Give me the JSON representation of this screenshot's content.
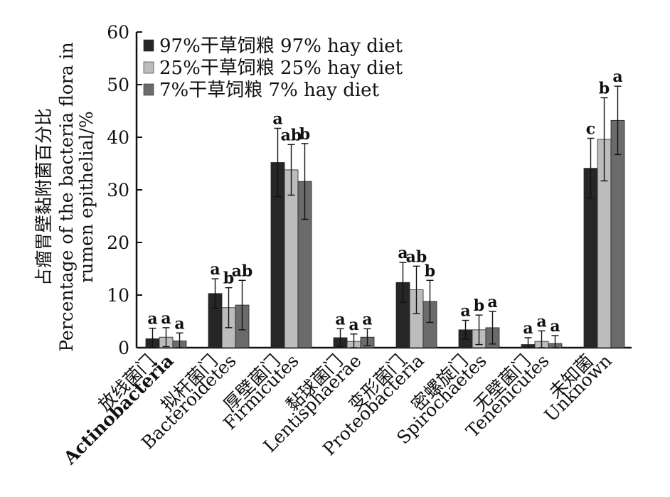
{
  "chart_data": {
    "type": "bar",
    "title": "",
    "ylabel": [
      "占瘤胃壁黏附菌百分比",
      "Percentage of the bacteria flora in",
      "rumen epithelial/%"
    ],
    "xlabel": "",
    "ylim": [
      0,
      60
    ],
    "yticks": [
      0,
      10,
      20,
      30,
      40,
      50,
      60
    ],
    "grid": false,
    "legend_position": "top-left",
    "categories": [
      {
        "zh": "放线菌门",
        "en": "Actinobacteria"
      },
      {
        "zh": "拟杆菌门",
        "en": "Bacteroidetes"
      },
      {
        "zh": "厚壁菌门",
        "en": "Firmicutes"
      },
      {
        "zh": "黏球菌门",
        "en": "Lentisphaerae"
      },
      {
        "zh": "变形菌门",
        "en": "Proteobacteria"
      },
      {
        "zh": "密螺旋门",
        "en": "Spirochaetes"
      },
      {
        "zh": "无壁菌门",
        "en": "Tenenicutes"
      },
      {
        "zh": "未知菌",
        "en": "Unknown"
      }
    ],
    "series": [
      {
        "name": "97%干草饲粮 97% hay diet",
        "color": "#262626",
        "values": [
          1.7,
          10.3,
          35.2,
          1.9,
          12.4,
          3.4,
          0.6,
          34.1
        ],
        "errors": [
          2.0,
          2.8,
          6.5,
          1.7,
          3.8,
          1.8,
          1.3,
          5.7
        ],
        "sig": [
          "a",
          "a",
          "a",
          "a",
          "a",
          "a",
          "a",
          "c"
        ]
      },
      {
        "name": "25%干草饲粮 25% hay diet",
        "color": "#bcbcbc",
        "values": [
          2.0,
          7.6,
          33.8,
          1.2,
          11.0,
          3.4,
          1.2,
          39.6
        ],
        "errors": [
          1.8,
          3.8,
          4.8,
          1.4,
          4.5,
          2.8,
          2.0,
          7.9
        ],
        "sig": [
          "a",
          "b",
          "ab",
          "a",
          "ab",
          "b",
          "a",
          "b"
        ]
      },
      {
        "name": "7%干草饲粮 7% hay diet",
        "color": "#6b6b6b",
        "values": [
          1.3,
          8.1,
          31.6,
          2.0,
          8.8,
          3.8,
          0.8,
          43.2
        ],
        "errors": [
          1.5,
          4.7,
          7.2,
          1.6,
          4.0,
          3.1,
          1.5,
          6.5
        ],
        "sig": [
          "a",
          "ab",
          "b",
          "a",
          "b",
          "a",
          "a",
          "a"
        ]
      }
    ]
  }
}
